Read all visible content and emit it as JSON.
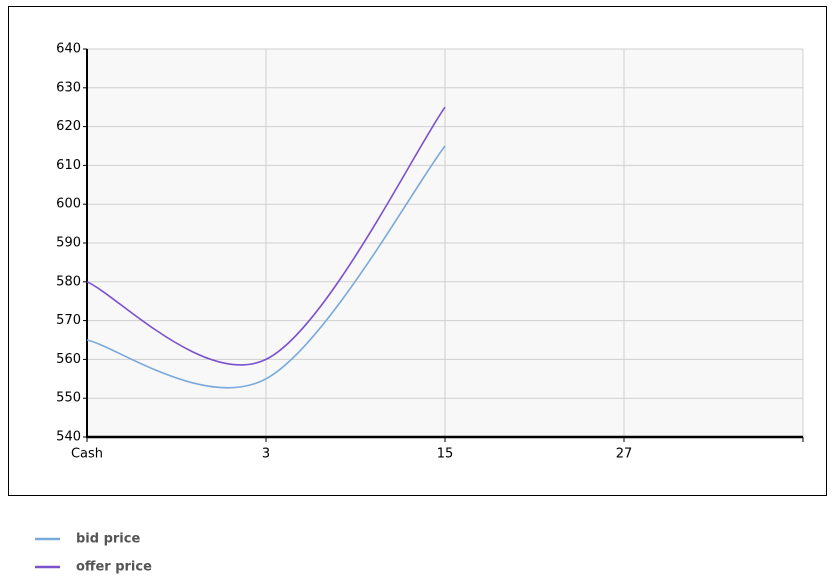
{
  "chart_data": {
    "type": "line",
    "categories": [
      "Cash",
      "3",
      "15",
      "27",
      null
    ],
    "series": [
      {
        "name": "bid price",
        "color": "#7aa9dc",
        "values": [
          565,
          555,
          615,
          null,
          null
        ]
      },
      {
        "name": "offer price",
        "color": "#7a52cc",
        "values": [
          580,
          560,
          625,
          null,
          null
        ]
      }
    ],
    "ylim": [
      540,
      640
    ],
    "yticks": [
      540,
      550,
      560,
      570,
      580,
      590,
      600,
      610,
      620,
      630,
      640
    ],
    "grid": true
  }
}
